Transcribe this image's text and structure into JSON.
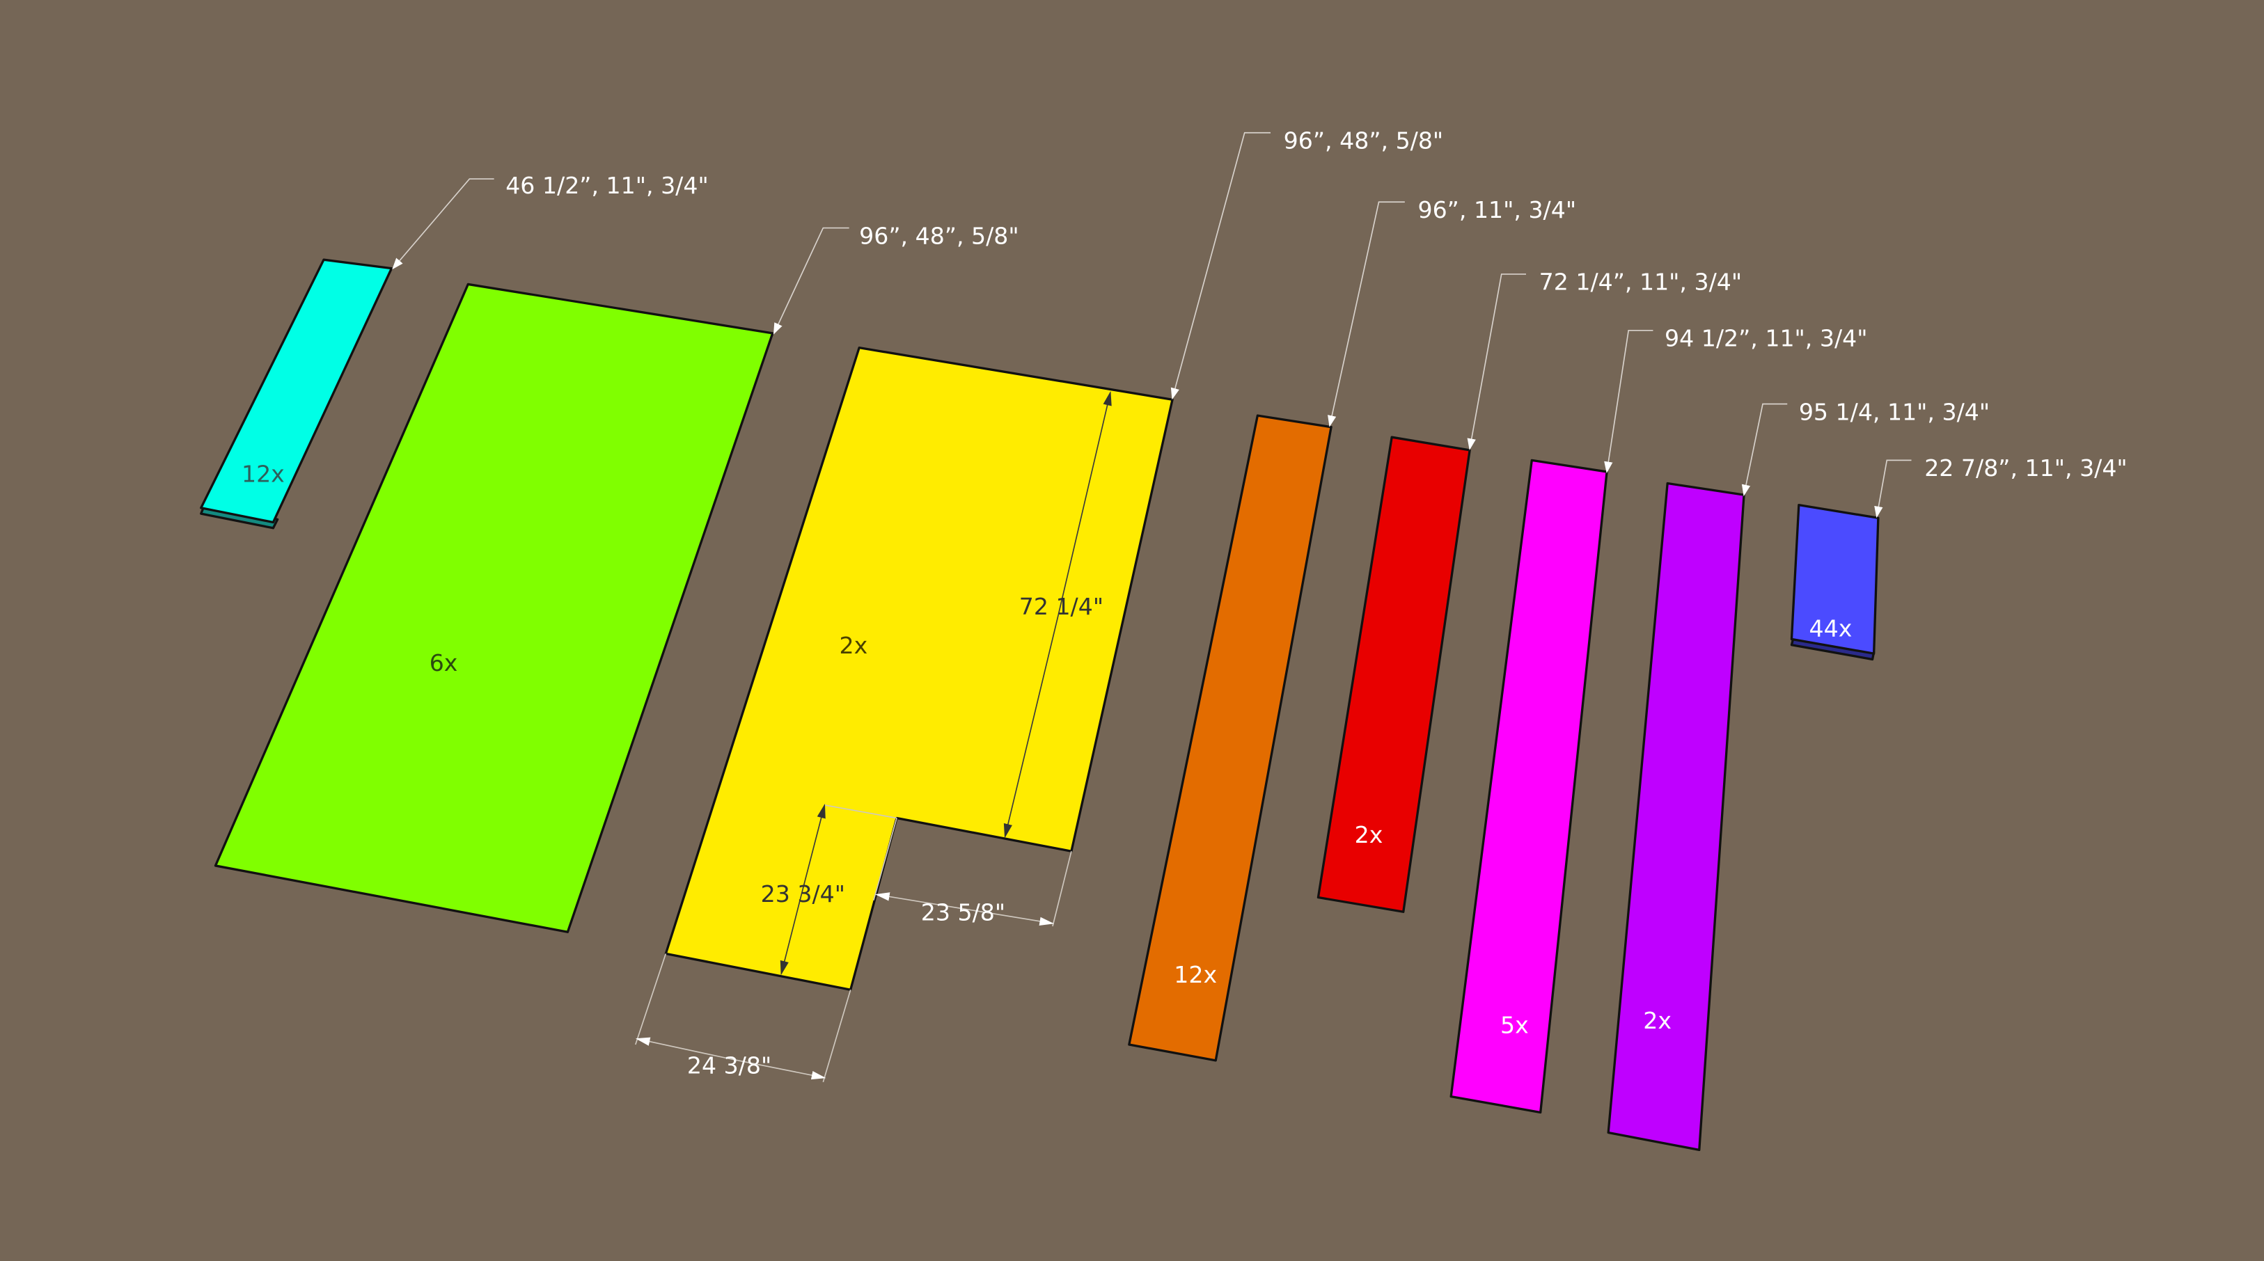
{
  "background_color": "#756656",
  "pieces": [
    {
      "id": "cyan",
      "color": "#00ffe6",
      "quantity": "12x",
      "label": "46 1/2”, 11\", 3/4\""
    },
    {
      "id": "green",
      "color": "#80ff00",
      "quantity": "6x",
      "label": "96”, 48”, 5/8\""
    },
    {
      "id": "yellow",
      "color": "#ffec00",
      "quantity": "2x",
      "label": "96”, 48”, 5/8\""
    },
    {
      "id": "orange",
      "color": "#e36c00",
      "quantity": "12x",
      "label": "96”, 11\", 3/4\""
    },
    {
      "id": "red",
      "color": "#e80000",
      "quantity": "2x",
      "label": "72 1/4”, 11\", 3/4\""
    },
    {
      "id": "magenta",
      "color": "#ff00ff",
      "quantity": "5x",
      "label": "94 1/2”, 11\", 3/4\""
    },
    {
      "id": "purple",
      "color": "#bf00ff",
      "quantity": "2x",
      "label": "95 1/4, 11\", 3/4\""
    },
    {
      "id": "blue",
      "color": "#4b4bff",
      "quantity": "44x",
      "label": "22 7/8”, 11\", 3/4\""
    }
  ],
  "dimensions": {
    "height": "72 1/4\"",
    "notch_height": "23 3/4\"",
    "notch_width": "23 5/8\"",
    "bottom_width": "24 3/8\""
  }
}
